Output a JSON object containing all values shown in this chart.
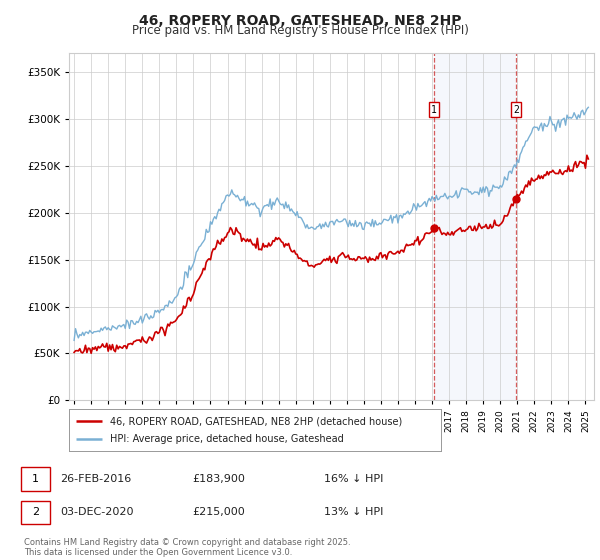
{
  "title": "46, ROPERY ROAD, GATESHEAD, NE8 2HP",
  "subtitle": "Price paid vs. HM Land Registry's House Price Index (HPI)",
  "hpi_label": "HPI: Average price, detached house, Gateshead",
  "property_label": "46, ROPERY ROAD, GATESHEAD, NE8 2HP (detached house)",
  "footnote": "Contains HM Land Registry data © Crown copyright and database right 2025.\nThis data is licensed under the Open Government Licence v3.0.",
  "sale1_date": "26-FEB-2016",
  "sale1_price": 183900,
  "sale1_note": "16% ↓ HPI",
  "sale2_date": "03-DEC-2020",
  "sale2_price": 215000,
  "sale2_note": "13% ↓ HPI",
  "ylim": [
    0,
    370000
  ],
  "yticks": [
    0,
    50000,
    100000,
    150000,
    200000,
    250000,
    300000,
    350000
  ],
  "hpi_color": "#7ab0d4",
  "property_color": "#cc0000",
  "highlight_color": "#ddeeff",
  "sale1_year": 2016.12,
  "sale2_year": 2020.92,
  "background_color": "#ffffff",
  "grid_color": "#cccccc",
  "xlim_left": 1994.7,
  "xlim_right": 2025.5
}
